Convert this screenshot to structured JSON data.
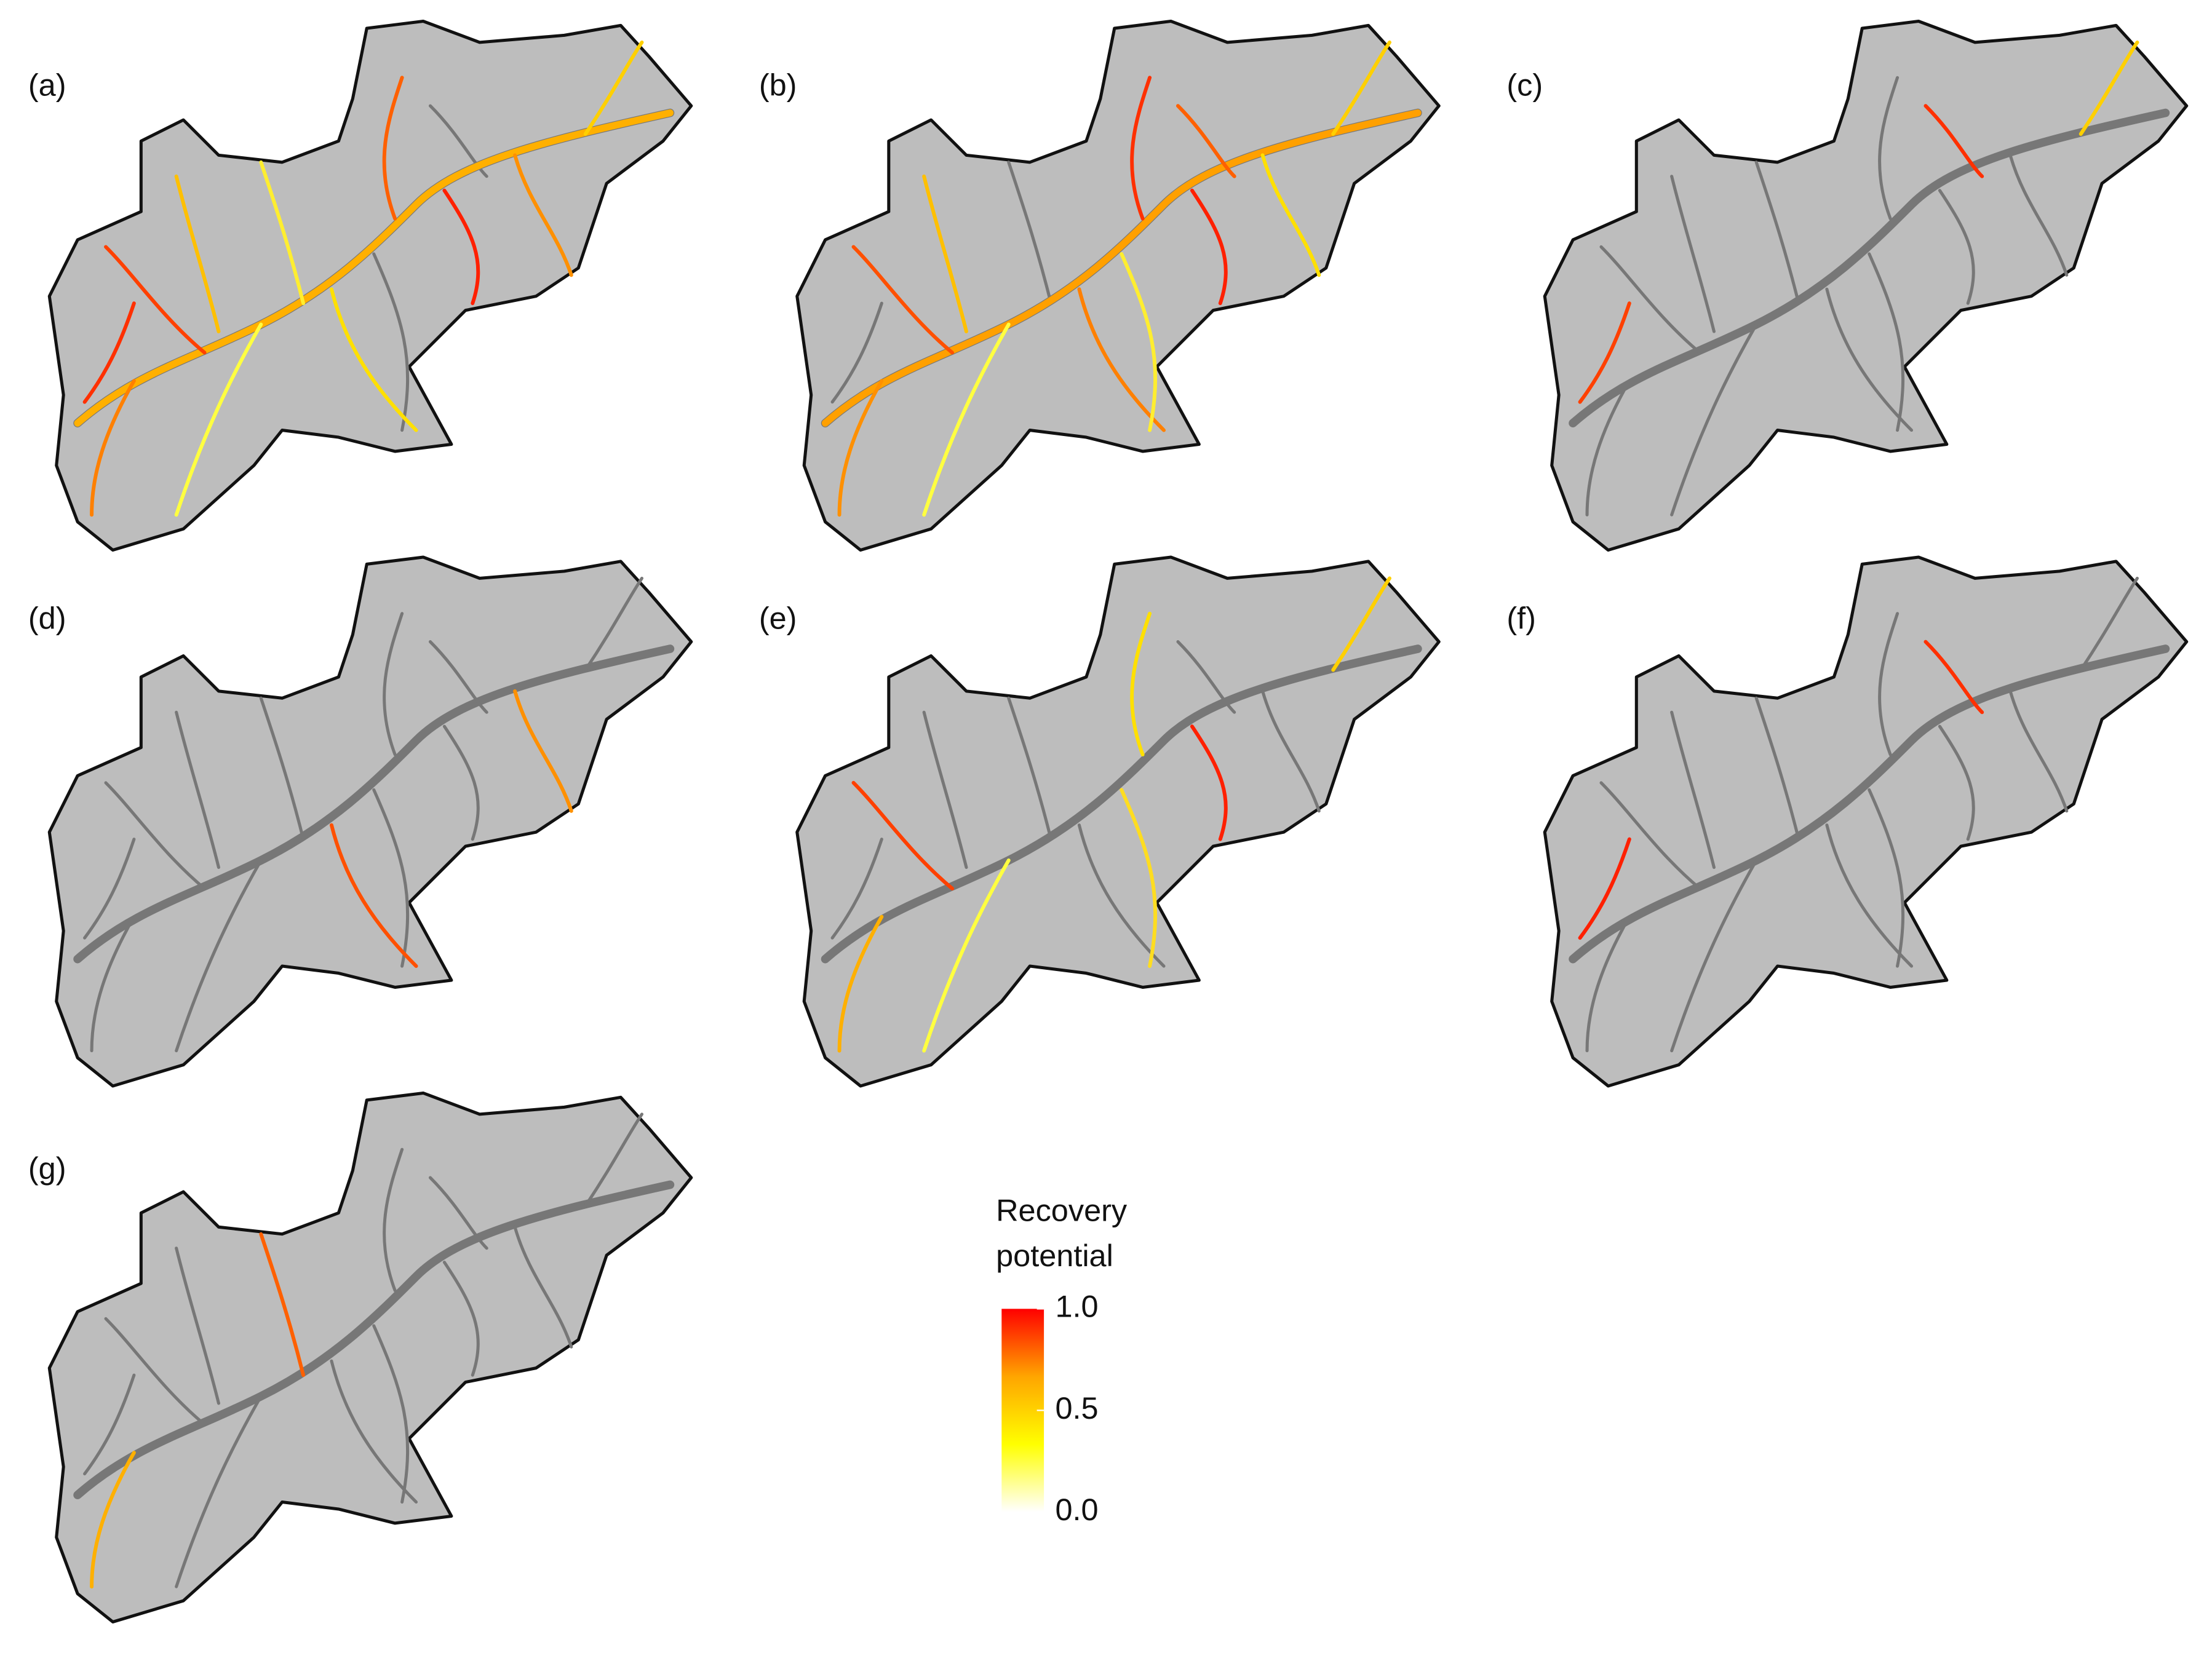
{
  "panels": [
    "(a)",
    "(b)",
    "(c)",
    "(d)",
    "(e)",
    "(f)",
    "(g)"
  ],
  "legend": {
    "title_lines": [
      "Recovery",
      "potential"
    ],
    "lim": [
      0,
      1
    ],
    "colors": [
      "#ffffff",
      "#ffff00",
      "#ffa500",
      "#ff0000"
    ],
    "ticks": [
      {
        "value": 1,
        "label": "1.0"
      },
      {
        "value": 0.5,
        "label": "0.5"
      },
      {
        "value": 0,
        "label": "0.0"
      }
    ]
  }
}
